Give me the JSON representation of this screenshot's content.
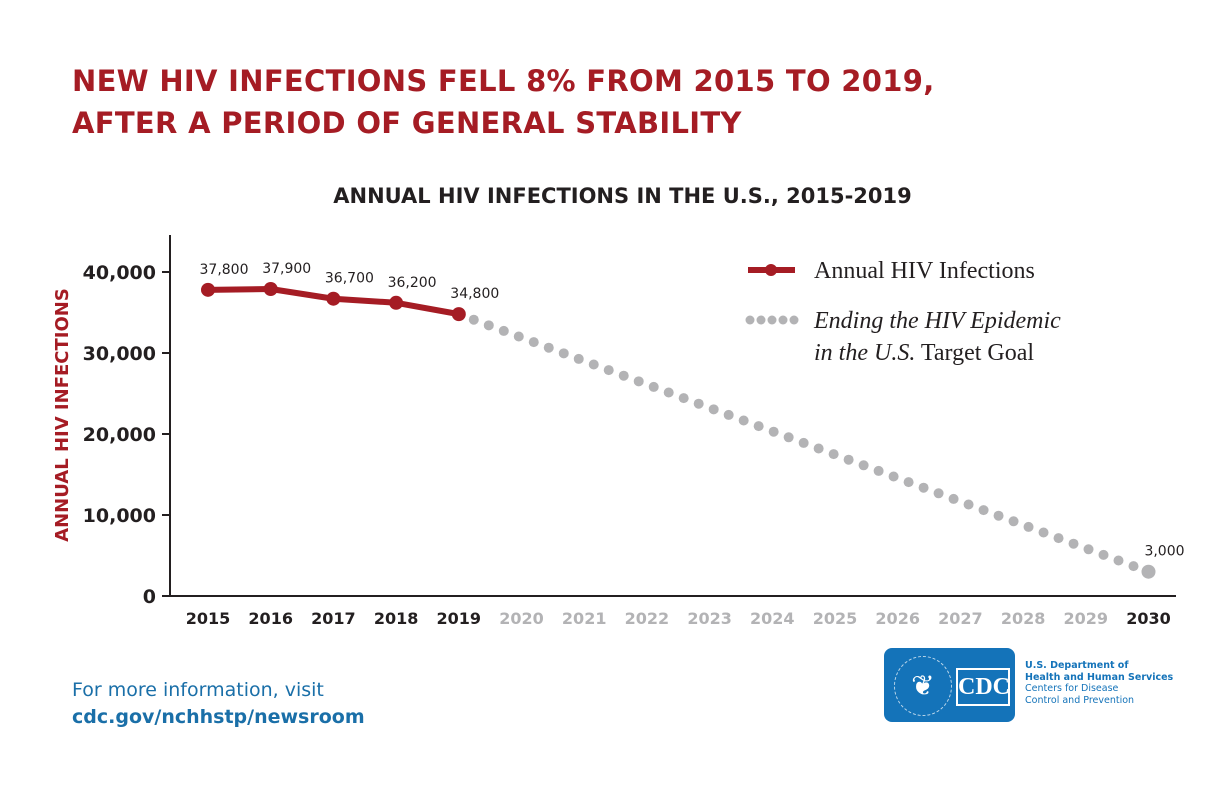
{
  "title_lines": [
    "NEW HIV INFECTIONS FELL 8% FROM 2015 TO 2019,",
    "AFTER A PERIOD OF GENERAL STABILITY"
  ],
  "footer": {
    "line1": "For more information, visit",
    "link": "cdc.gov/nchhstp/newsroom"
  },
  "logo": {
    "text": "CDC",
    "agency_lines": [
      "U.S. Department of",
      "Health and Human Services",
      "Centers for Disease",
      "Control and Prevention"
    ]
  },
  "colors": {
    "actual": "#a51c24",
    "target": "#b3b3b5",
    "title": "#a51c24",
    "footer": "#1a6fa8"
  },
  "chart_data": {
    "type": "line",
    "title": "ANNUAL HIV INFECTIONS IN THE U.S., 2015-2019",
    "ylabel": "ANNUAL HIV INFECTIONS",
    "xlabel": "",
    "ylim": [
      0,
      45000
    ],
    "yticks": [
      "0",
      "10,000",
      "20,000",
      "30,000",
      "40,000"
    ],
    "ytick_values": [
      0,
      10000,
      20000,
      30000,
      40000
    ],
    "categories": [
      "2015",
      "2016",
      "2017",
      "2018",
      "2019",
      "2020",
      "2021",
      "2022",
      "2023",
      "2024",
      "2025",
      "2026",
      "2027",
      "2028",
      "2029",
      "2030"
    ],
    "grid": false,
    "legend_position": "top-right",
    "legend": {
      "actual": "Annual HIV Infections",
      "target_italic": "Ending the HIV Epidemic",
      "target_line2_italic": "in the U.S.",
      "target_line2_rest": " Target Goal"
    },
    "series": [
      {
        "name": "Annual HIV Infections",
        "style": "solid",
        "x": [
          "2015",
          "2016",
          "2017",
          "2018",
          "2019"
        ],
        "values": [
          37800,
          37900,
          36700,
          36200,
          34800
        ],
        "labels": [
          "37,800",
          "37,900",
          "36,700",
          "36,200",
          "34,800"
        ]
      },
      {
        "name": "Ending the HIV Epidemic in the U.S. Target Goal",
        "style": "dotted",
        "x": [
          "2019",
          "2030"
        ],
        "values": [
          34800,
          3000
        ],
        "labels": [
          "",
          "3,000"
        ]
      }
    ]
  }
}
